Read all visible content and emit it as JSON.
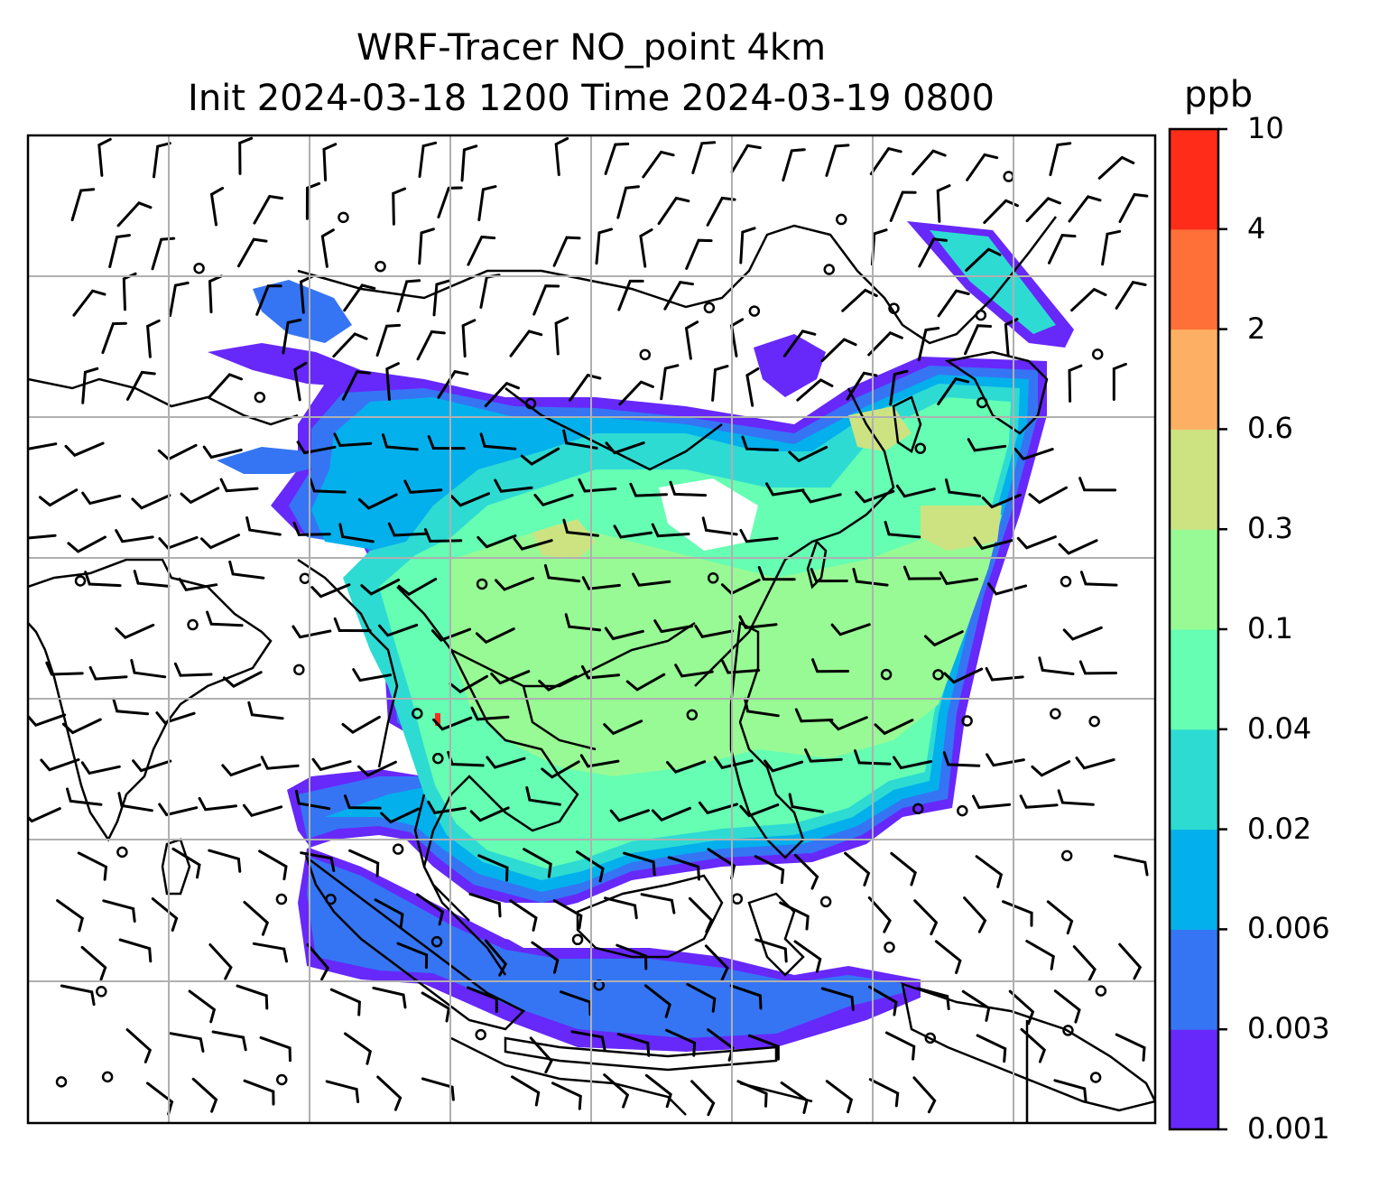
{
  "title_line1": "WRF-Tracer NO_point 4km",
  "title_line2": "Init 2024-03-18 1200 Time 2024-03-19 0800",
  "colorbar": {
    "unit": "ppb",
    "levels": [
      "0.001",
      "0.003",
      "0.006",
      "0.02",
      "0.04",
      "0.1",
      "0.3",
      "0.6",
      "2",
      "4",
      "10"
    ],
    "colors": [
      "#6728fa",
      "#3575f4",
      "#03b0ec",
      "#2ddbd3",
      "#65feb3",
      "#98fa94",
      "#cde382",
      "#fdb063",
      "#ff7038",
      "#ff2c1a"
    ]
  },
  "map": {
    "ocean_color": "#ffffff",
    "land_outline_color": "#000000",
    "grid_color": "#b0b0b0",
    "field_colors": {
      "very_low": "#6728fa",
      "low": "#3575f4",
      "cyan": "#03b0ec",
      "teal": "#2ddbd3",
      "aqua": "#65feb3",
      "green": "#98fa94",
      "olive": "#cde382",
      "hotspot": "#ff2c1a"
    }
  }
}
